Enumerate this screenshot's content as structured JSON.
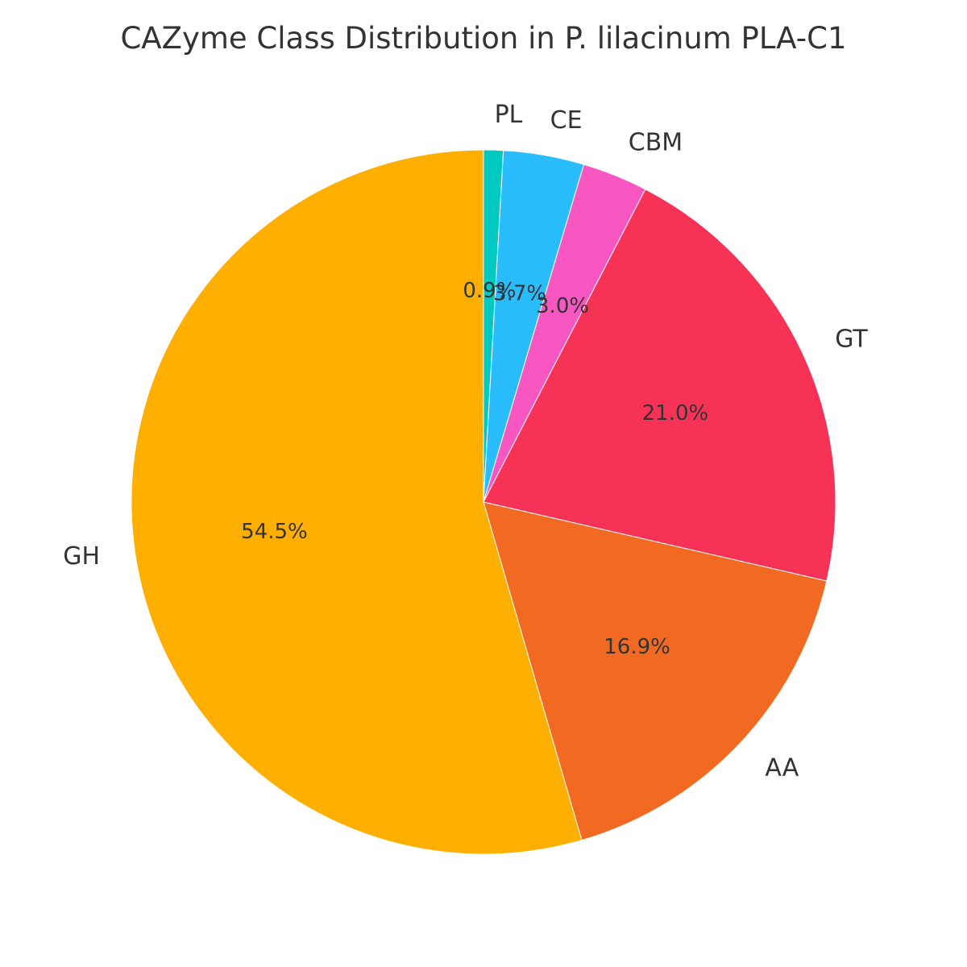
{
  "chart_data": {
    "type": "pie",
    "title": "CAZyme Class Distribution in P. lilacinum PLA-C1",
    "start_angle_deg": 90,
    "direction": "clockwise",
    "slices": [
      {
        "label": "PL",
        "value": 0.9,
        "pct_text": "0.9%",
        "color": "#00C9C0"
      },
      {
        "label": "CE",
        "value": 3.7,
        "pct_text": "3.7%",
        "color": "#29BDFD"
      },
      {
        "label": "CBM",
        "value": 3.0,
        "pct_text": "3.0%",
        "color": "#F857C1"
      },
      {
        "label": "GT",
        "value": 21.0,
        "pct_text": "21.0%",
        "color": "#F63257"
      },
      {
        "label": "AA",
        "value": 16.9,
        "pct_text": "16.9%",
        "color": "#F26A21"
      },
      {
        "label": "GH",
        "value": 54.5,
        "pct_text": "54.5%",
        "color": "#FFAF00"
      }
    ]
  }
}
